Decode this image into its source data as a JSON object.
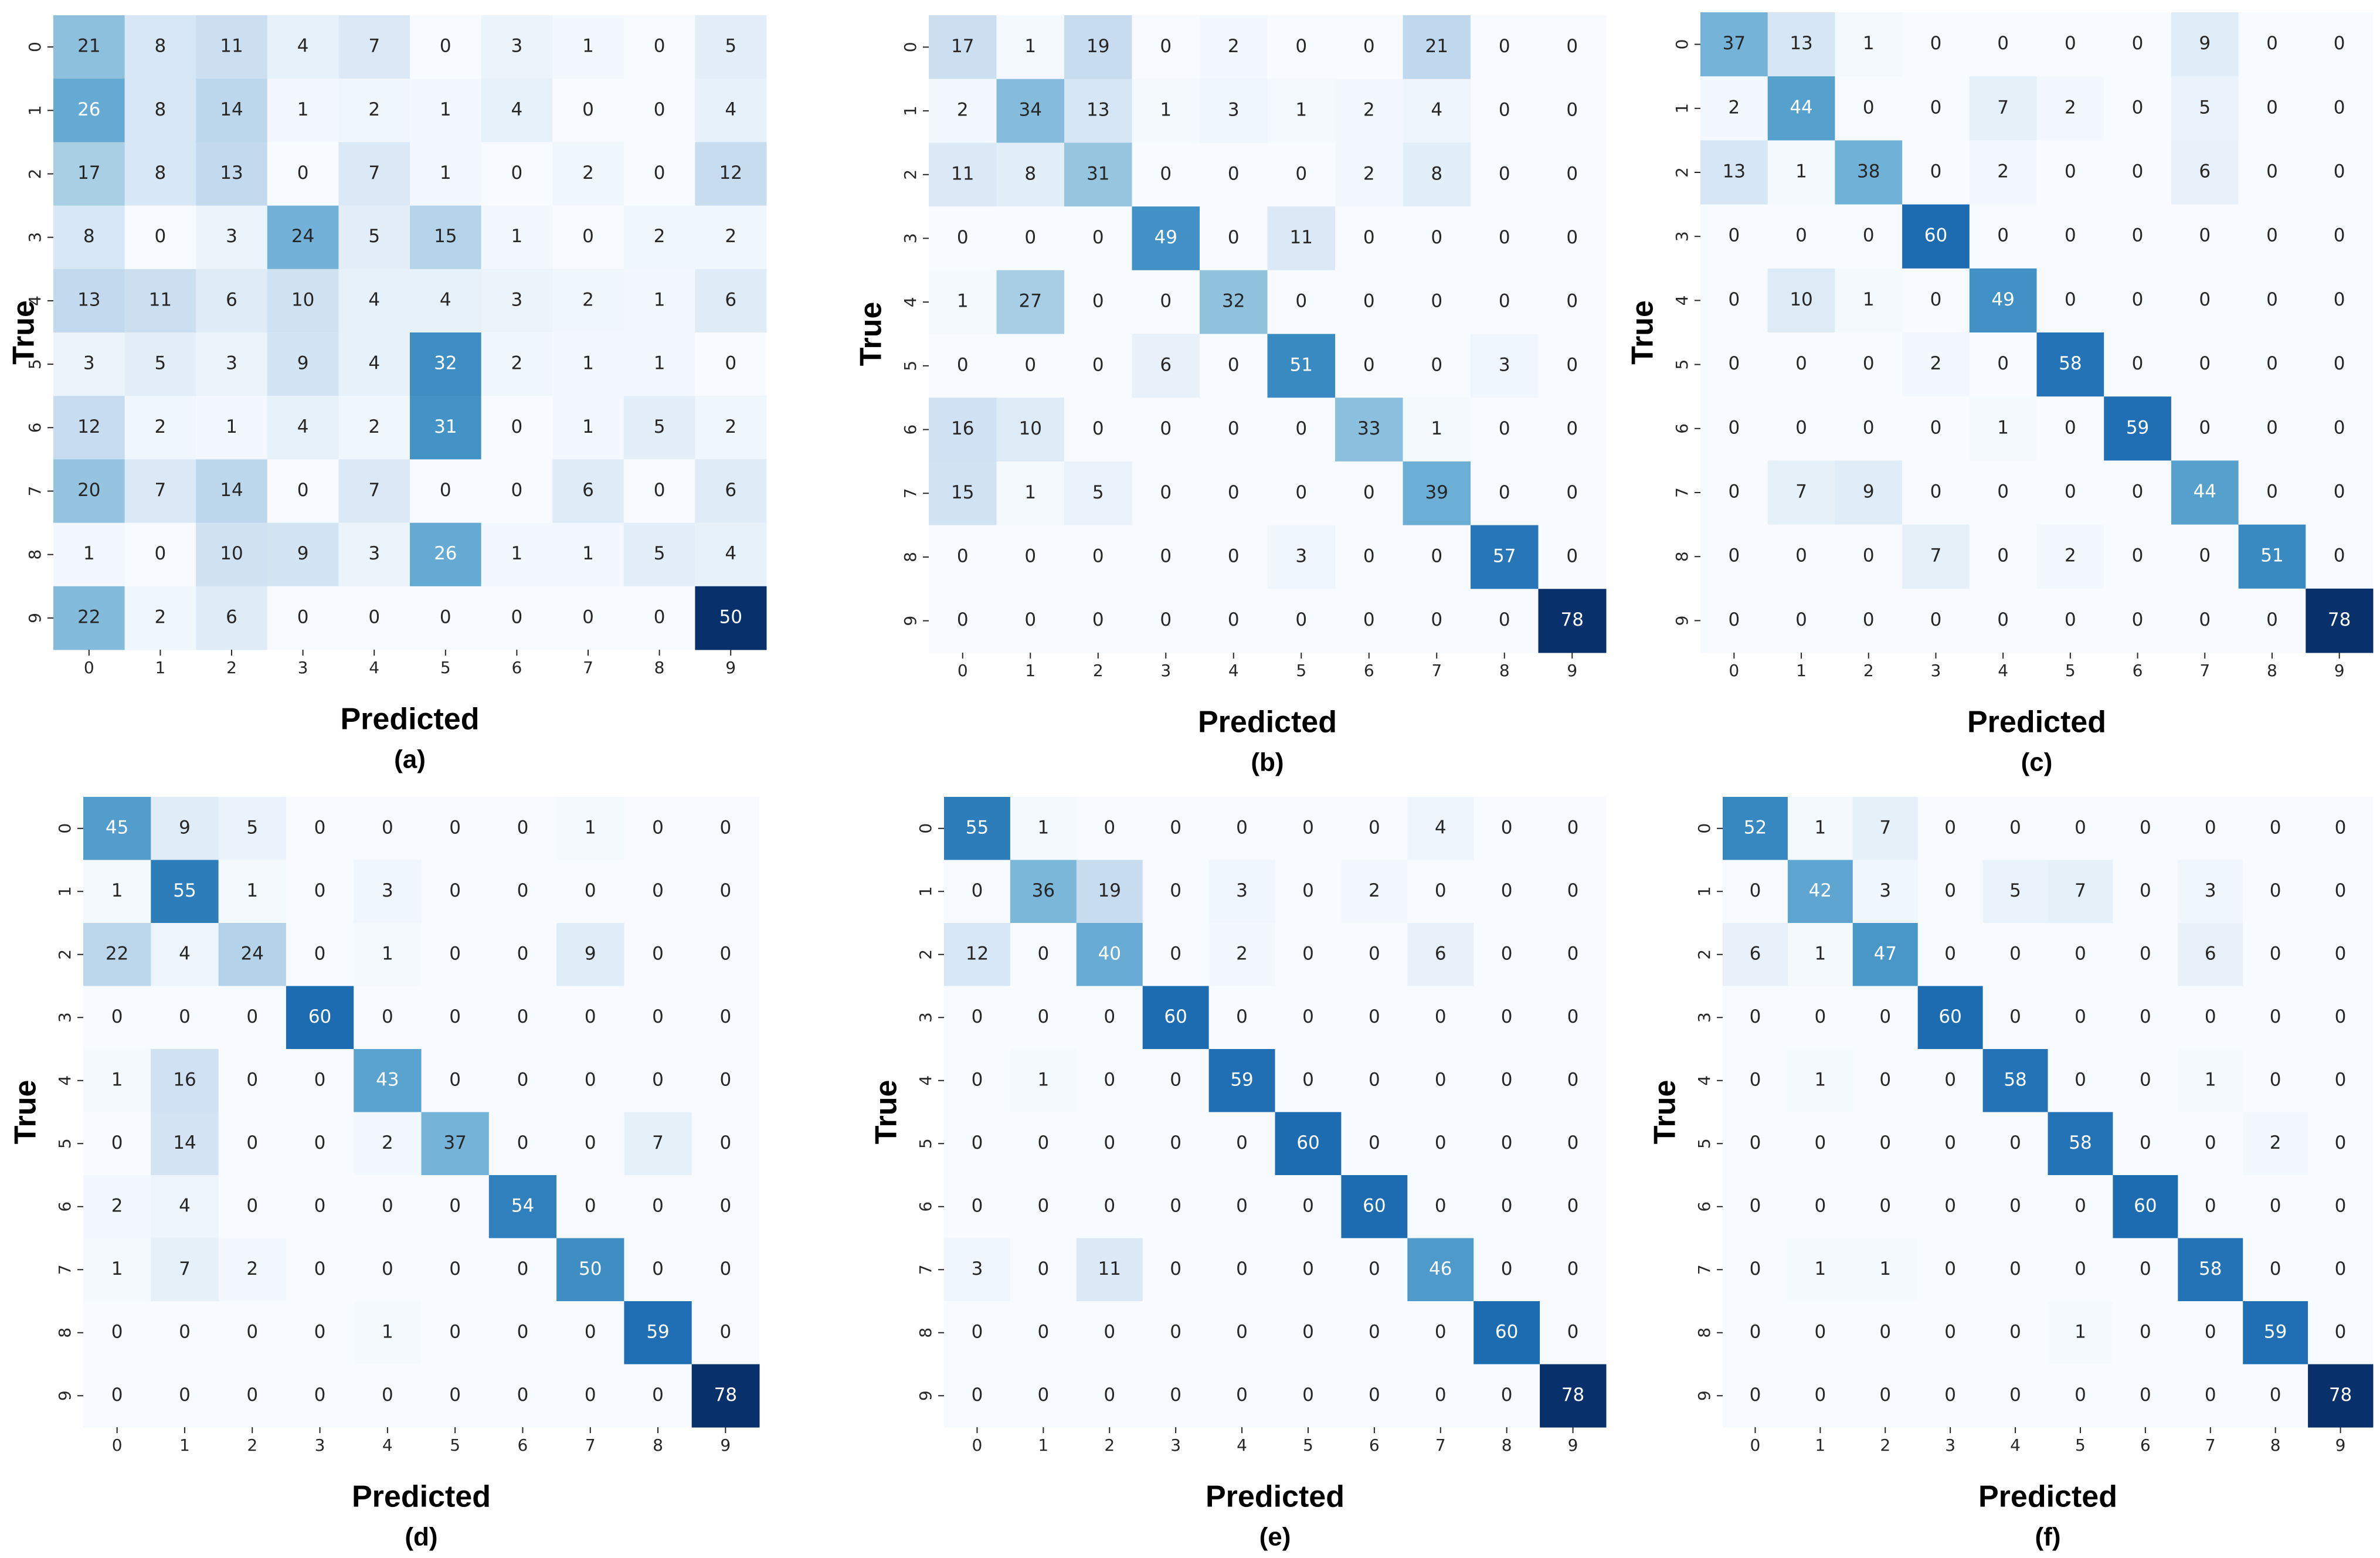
{
  "chart_data": [
    {
      "type": "heatmap",
      "colormap": "Blues",
      "xlabel": "Predicted",
      "ylabel": "True",
      "caption": "(a)",
      "x_categories": [
        "0",
        "1",
        "2",
        "3",
        "4",
        "5",
        "6",
        "7",
        "8",
        "9"
      ],
      "y_categories": [
        "0",
        "1",
        "2",
        "3",
        "4",
        "5",
        "6",
        "7",
        "8",
        "9"
      ],
      "values": [
        [
          21,
          8,
          11,
          4,
          7,
          0,
          3,
          1,
          0,
          5
        ],
        [
          26,
          8,
          14,
          1,
          2,
          1,
          4,
          0,
          0,
          4
        ],
        [
          17,
          8,
          13,
          0,
          7,
          1,
          0,
          2,
          0,
          12
        ],
        [
          8,
          0,
          3,
          24,
          5,
          15,
          1,
          0,
          2,
          2
        ],
        [
          13,
          11,
          6,
          10,
          4,
          4,
          3,
          2,
          1,
          6
        ],
        [
          3,
          5,
          3,
          9,
          4,
          32,
          2,
          1,
          1,
          0
        ],
        [
          12,
          2,
          1,
          4,
          2,
          31,
          0,
          1,
          5,
          2
        ],
        [
          20,
          7,
          14,
          0,
          7,
          0,
          0,
          6,
          0,
          6
        ],
        [
          1,
          0,
          10,
          9,
          3,
          26,
          1,
          1,
          5,
          4
        ],
        [
          22,
          2,
          6,
          0,
          0,
          0,
          0,
          0,
          0,
          50
        ]
      ]
    },
    {
      "type": "heatmap",
      "colormap": "Blues",
      "xlabel": "Predicted",
      "ylabel": "True",
      "caption": "(b)",
      "x_categories": [
        "0",
        "1",
        "2",
        "3",
        "4",
        "5",
        "6",
        "7",
        "8",
        "9"
      ],
      "y_categories": [
        "0",
        "1",
        "2",
        "3",
        "4",
        "5",
        "6",
        "7",
        "8",
        "9"
      ],
      "values": [
        [
          17,
          1,
          19,
          0,
          2,
          0,
          0,
          21,
          0,
          0
        ],
        [
          2,
          34,
          13,
          1,
          3,
          1,
          2,
          4,
          0,
          0
        ],
        [
          11,
          8,
          31,
          0,
          0,
          0,
          2,
          8,
          0,
          0
        ],
        [
          0,
          0,
          0,
          49,
          0,
          11,
          0,
          0,
          0,
          0
        ],
        [
          1,
          27,
          0,
          0,
          32,
          0,
          0,
          0,
          0,
          0
        ],
        [
          0,
          0,
          0,
          6,
          0,
          51,
          0,
          0,
          3,
          0
        ],
        [
          16,
          10,
          0,
          0,
          0,
          0,
          33,
          1,
          0,
          0
        ],
        [
          15,
          1,
          5,
          0,
          0,
          0,
          0,
          39,
          0,
          0
        ],
        [
          0,
          0,
          0,
          0,
          0,
          3,
          0,
          0,
          57,
          0
        ],
        [
          0,
          0,
          0,
          0,
          0,
          0,
          0,
          0,
          0,
          78
        ]
      ]
    },
    {
      "type": "heatmap",
      "colormap": "Blues",
      "xlabel": "Predicted",
      "ylabel": "True",
      "caption": "(c)",
      "x_categories": [
        "0",
        "1",
        "2",
        "3",
        "4",
        "5",
        "6",
        "7",
        "8",
        "9"
      ],
      "y_categories": [
        "0",
        "1",
        "2",
        "3",
        "4",
        "5",
        "6",
        "7",
        "8",
        "9"
      ],
      "values": [
        [
          37,
          13,
          1,
          0,
          0,
          0,
          0,
          9,
          0,
          0
        ],
        [
          2,
          44,
          0,
          0,
          7,
          2,
          0,
          5,
          0,
          0
        ],
        [
          13,
          1,
          38,
          0,
          2,
          0,
          0,
          6,
          0,
          0
        ],
        [
          0,
          0,
          0,
          60,
          0,
          0,
          0,
          0,
          0,
          0
        ],
        [
          0,
          10,
          1,
          0,
          49,
          0,
          0,
          0,
          0,
          0
        ],
        [
          0,
          0,
          0,
          2,
          0,
          58,
          0,
          0,
          0,
          0
        ],
        [
          0,
          0,
          0,
          0,
          1,
          0,
          59,
          0,
          0,
          0
        ],
        [
          0,
          7,
          9,
          0,
          0,
          0,
          0,
          44,
          0,
          0
        ],
        [
          0,
          0,
          0,
          7,
          0,
          2,
          0,
          0,
          51,
          0
        ],
        [
          0,
          0,
          0,
          0,
          0,
          0,
          0,
          0,
          0,
          78
        ]
      ]
    },
    {
      "type": "heatmap",
      "colormap": "Blues",
      "xlabel": "Predicted",
      "ylabel": "True",
      "caption": "(d)",
      "x_categories": [
        "0",
        "1",
        "2",
        "3",
        "4",
        "5",
        "6",
        "7",
        "8",
        "9"
      ],
      "y_categories": [
        "0",
        "1",
        "2",
        "3",
        "4",
        "5",
        "6",
        "7",
        "8",
        "9"
      ],
      "values": [
        [
          45,
          9,
          5,
          0,
          0,
          0,
          0,
          1,
          0,
          0
        ],
        [
          1,
          55,
          1,
          0,
          3,
          0,
          0,
          0,
          0,
          0
        ],
        [
          22,
          4,
          24,
          0,
          1,
          0,
          0,
          9,
          0,
          0
        ],
        [
          0,
          0,
          0,
          60,
          0,
          0,
          0,
          0,
          0,
          0
        ],
        [
          1,
          16,
          0,
          0,
          43,
          0,
          0,
          0,
          0,
          0
        ],
        [
          0,
          14,
          0,
          0,
          2,
          37,
          0,
          0,
          7,
          0
        ],
        [
          2,
          4,
          0,
          0,
          0,
          0,
          54,
          0,
          0,
          0
        ],
        [
          1,
          7,
          2,
          0,
          0,
          0,
          0,
          50,
          0,
          0
        ],
        [
          0,
          0,
          0,
          0,
          1,
          0,
          0,
          0,
          59,
          0
        ],
        [
          0,
          0,
          0,
          0,
          0,
          0,
          0,
          0,
          0,
          78
        ]
      ]
    },
    {
      "type": "heatmap",
      "colormap": "Blues",
      "xlabel": "Predicted",
      "ylabel": "True",
      "caption": "(e)",
      "x_categories": [
        "0",
        "1",
        "2",
        "3",
        "4",
        "5",
        "6",
        "7",
        "8",
        "9"
      ],
      "y_categories": [
        "0",
        "1",
        "2",
        "3",
        "4",
        "5",
        "6",
        "7",
        "8",
        "9"
      ],
      "values": [
        [
          55,
          1,
          0,
          0,
          0,
          0,
          0,
          4,
          0,
          0
        ],
        [
          0,
          36,
          19,
          0,
          3,
          0,
          2,
          0,
          0,
          0
        ],
        [
          12,
          0,
          40,
          0,
          2,
          0,
          0,
          6,
          0,
          0
        ],
        [
          0,
          0,
          0,
          60,
          0,
          0,
          0,
          0,
          0,
          0
        ],
        [
          0,
          1,
          0,
          0,
          59,
          0,
          0,
          0,
          0,
          0
        ],
        [
          0,
          0,
          0,
          0,
          0,
          60,
          0,
          0,
          0,
          0
        ],
        [
          0,
          0,
          0,
          0,
          0,
          0,
          60,
          0,
          0,
          0
        ],
        [
          3,
          0,
          11,
          0,
          0,
          0,
          0,
          46,
          0,
          0
        ],
        [
          0,
          0,
          0,
          0,
          0,
          0,
          0,
          0,
          60,
          0
        ],
        [
          0,
          0,
          0,
          0,
          0,
          0,
          0,
          0,
          0,
          78
        ]
      ]
    },
    {
      "type": "heatmap",
      "colormap": "Blues",
      "xlabel": "Predicted",
      "ylabel": "True",
      "caption": "(f)",
      "x_categories": [
        "0",
        "1",
        "2",
        "3",
        "4",
        "5",
        "6",
        "7",
        "8",
        "9"
      ],
      "y_categories": [
        "0",
        "1",
        "2",
        "3",
        "4",
        "5",
        "6",
        "7",
        "8",
        "9"
      ],
      "values": [
        [
          52,
          1,
          7,
          0,
          0,
          0,
          0,
          0,
          0,
          0
        ],
        [
          0,
          42,
          3,
          0,
          5,
          7,
          0,
          3,
          0,
          0
        ],
        [
          6,
          1,
          47,
          0,
          0,
          0,
          0,
          6,
          0,
          0
        ],
        [
          0,
          0,
          0,
          60,
          0,
          0,
          0,
          0,
          0,
          0
        ],
        [
          0,
          1,
          0,
          0,
          58,
          0,
          0,
          1,
          0,
          0
        ],
        [
          0,
          0,
          0,
          0,
          0,
          58,
          0,
          0,
          2,
          0
        ],
        [
          0,
          0,
          0,
          0,
          0,
          0,
          60,
          0,
          0,
          0
        ],
        [
          0,
          1,
          1,
          0,
          0,
          0,
          0,
          58,
          0,
          0
        ],
        [
          0,
          0,
          0,
          0,
          0,
          1,
          0,
          0,
          59,
          0
        ],
        [
          0,
          0,
          0,
          0,
          0,
          0,
          0,
          0,
          0,
          78
        ]
      ]
    }
  ]
}
